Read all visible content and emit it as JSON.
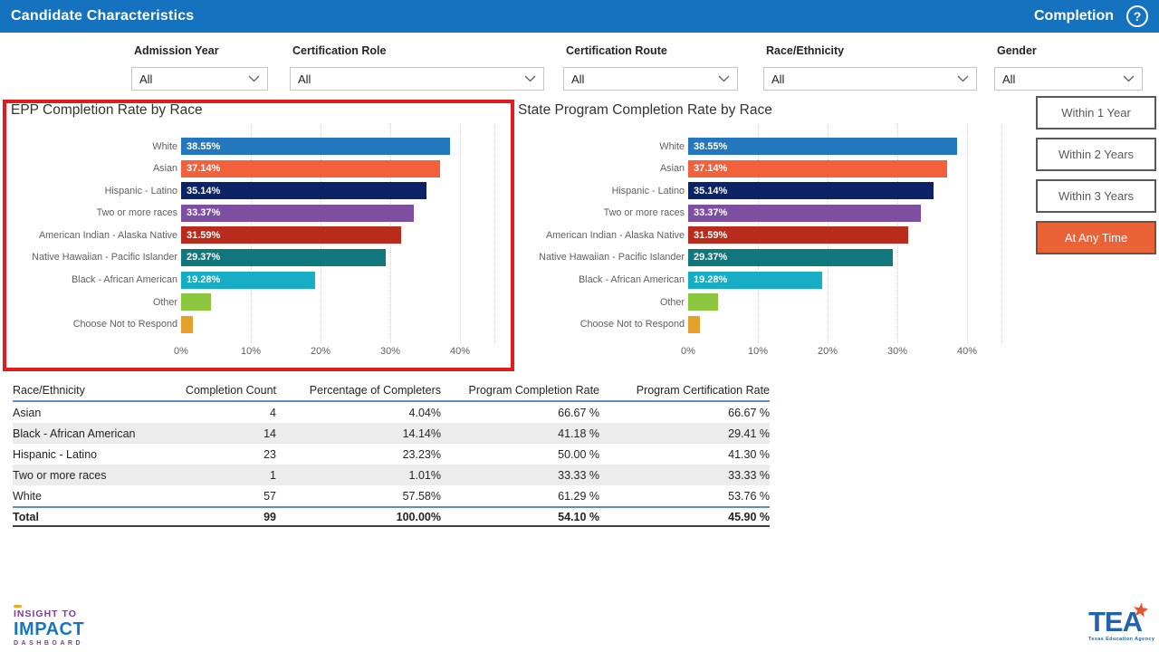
{
  "titlebar": {
    "title": "Candidate Characteristics",
    "page_label": "Completion",
    "help_glyph": "?",
    "bg_color": "#1572BE"
  },
  "filters": [
    {
      "label": "Admission Year",
      "value": "All"
    },
    {
      "label": "Certification Role",
      "value": "All"
    },
    {
      "label": "Certification Route",
      "value": "All"
    },
    {
      "label": "Race/Ethnicity",
      "value": "All"
    },
    {
      "label": "Gender",
      "value": "All"
    }
  ],
  "time_buttons": [
    {
      "label": "Within 1 Year",
      "active": false
    },
    {
      "label": "Within 2 Years",
      "active": false
    },
    {
      "label": "Within 3 Years",
      "active": false
    },
    {
      "label": "At Any Time",
      "active": true
    }
  ],
  "chart_data": [
    {
      "type": "bar",
      "orientation": "horizontal",
      "title": "EPP Completion Rate by Race",
      "categories": [
        "White",
        "Asian",
        "Hispanic - Latino",
        "Two or more races",
        "American Indian - Alaska Native",
        "Native Hawaiian - Pacific Islander",
        "Black - African American",
        "Other",
        "Choose Not to Respond"
      ],
      "values": [
        38.55,
        37.14,
        35.14,
        33.37,
        31.59,
        29.37,
        19.28,
        4.3,
        1.7
      ],
      "data_labels": [
        "38.55%",
        "37.14%",
        "35.14%",
        "33.37%",
        "31.59%",
        "29.37%",
        "19.28%",
        "",
        ""
      ],
      "colors": [
        "#2277BD",
        "#F2613C",
        "#0C2466",
        "#7E4FA0",
        "#B92C1B",
        "#10787D",
        "#17ADC5",
        "#8CC63E",
        "#E8A02C"
      ],
      "x_ticks": [
        "0%",
        "10%",
        "20%",
        "30%",
        "40%"
      ],
      "xlim": [
        0,
        44.9
      ],
      "grid": "vertical-dotted",
      "selected_highlight": true
    },
    {
      "type": "bar",
      "orientation": "horizontal",
      "title": "State Program Completion Rate by Race",
      "categories": [
        "White",
        "Asian",
        "Hispanic - Latino",
        "Two or more races",
        "American Indian - Alaska Native",
        "Native Hawaiian - Pacific Islander",
        "Black - African American",
        "Other",
        "Choose Not to Respond"
      ],
      "values": [
        38.55,
        37.14,
        35.14,
        33.37,
        31.59,
        29.37,
        19.28,
        4.3,
        1.7
      ],
      "data_labels": [
        "38.55%",
        "37.14%",
        "35.14%",
        "33.37%",
        "31.59%",
        "29.37%",
        "19.28%",
        "",
        ""
      ],
      "colors": [
        "#2277BD",
        "#F2613C",
        "#0C2466",
        "#7E4FA0",
        "#B92C1B",
        "#10787D",
        "#17ADC5",
        "#8CC63E",
        "#E8A02C"
      ],
      "x_ticks": [
        "0%",
        "10%",
        "20%",
        "30%",
        "40%"
      ],
      "xlim": [
        0,
        44.9
      ],
      "grid": "vertical-dotted",
      "selected_highlight": false
    }
  ],
  "table": {
    "columns": [
      "Race/Ethnicity",
      "Completion Count",
      "Percentage of Completers",
      "Program Completion Rate",
      "Program Certification Rate"
    ],
    "rows": [
      [
        "Asian",
        "4",
        "4.04%",
        "66.67 %",
        "66.67 %"
      ],
      [
        "Black - African American",
        "14",
        "14.14%",
        "41.18 %",
        "29.41 %"
      ],
      [
        "Hispanic - Latino",
        "23",
        "23.23%",
        "50.00 %",
        "41.30 %"
      ],
      [
        "Two or more races",
        "1",
        "1.01%",
        "33.33 %",
        "33.33 %"
      ],
      [
        "White",
        "57",
        "57.58%",
        "61.29 %",
        "53.76 %"
      ]
    ],
    "total_row": [
      "Total",
      "99",
      "100.00%",
      "54.10 %",
      "45.90 %"
    ]
  },
  "footer": {
    "insight_logo": {
      "line1": "INSIGHT TO",
      "line2": "IMPACT",
      "line3": "DASHBOARD"
    },
    "tea_logo": {
      "acronym": "TEA",
      "reg": "®",
      "star": "★",
      "subtext": "Texas Education Agency"
    }
  },
  "style_tokens": {
    "accent_red_highlight": "#E31B1B",
    "active_button_orange": "#EB6237",
    "table_rule_blue": "#5C8FC0",
    "alt_row_gray": "#ECECEC"
  }
}
